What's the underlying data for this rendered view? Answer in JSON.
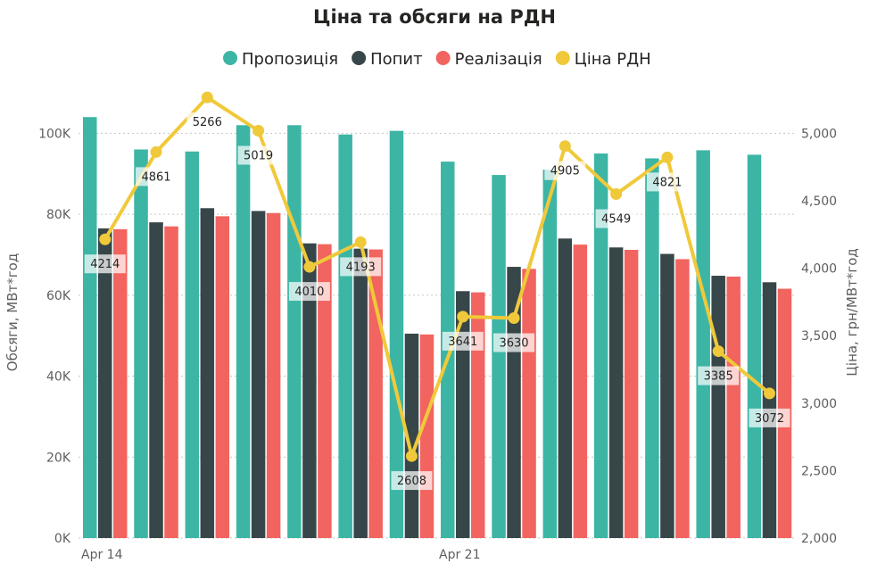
{
  "chart_data": {
    "type": "bar",
    "title": "Ціна та обсяги на РДН",
    "ylabel": "Обсяги, МВт*год",
    "y2label": "Ціна, грн/МВт*год",
    "ylim": [
      0,
      110000
    ],
    "y2lim": [
      2000,
      5300
    ],
    "y_ticks": [
      {
        "value": 0,
        "label": "0K"
      },
      {
        "value": 20000,
        "label": "20K"
      },
      {
        "value": 40000,
        "label": "40K"
      },
      {
        "value": 60000,
        "label": "60K"
      },
      {
        "value": 80000,
        "label": "80K"
      },
      {
        "value": 100000,
        "label": "100K"
      }
    ],
    "y2_ticks": [
      {
        "value": 2000,
        "label": "2,000"
      },
      {
        "value": 2500,
        "label": "2,500"
      },
      {
        "value": 3000,
        "label": "3,000"
      },
      {
        "value": 3500,
        "label": "3,500"
      },
      {
        "value": 4000,
        "label": "4,000"
      },
      {
        "value": 4500,
        "label": "4,500"
      },
      {
        "value": 5000,
        "label": "5,000"
      }
    ],
    "x_tick_labels": [
      {
        "index": 0,
        "label": "Apr 14"
      },
      {
        "index": 7,
        "label": "Apr 21"
      }
    ],
    "legend_position": "top-center",
    "grid": true,
    "series": [
      {
        "name": "Пропозиція",
        "color": "#3cb5a5",
        "kind": "bar",
        "values": [
          104000,
          96000,
          95500,
          102000,
          102000,
          99700,
          100600,
          93000,
          89700,
          91000,
          95000,
          93800,
          95800,
          94700
        ]
      },
      {
        "name": "Попит",
        "color": "#374649",
        "kind": "bar",
        "values": [
          76500,
          78000,
          81500,
          80800,
          72800,
          71500,
          50500,
          61000,
          67000,
          74000,
          71800,
          70200,
          64800,
          63200
        ]
      },
      {
        "name": "Реалізація",
        "color": "#f2645f",
        "kind": "bar",
        "values": [
          76300,
          77000,
          79500,
          80300,
          72600,
          71300,
          50300,
          60700,
          66500,
          72500,
          71200,
          68900,
          64600,
          61600
        ]
      },
      {
        "name": "Ціна РДН",
        "color": "#f0c93a",
        "kind": "line",
        "axis": "right",
        "values": [
          4214,
          4861,
          5266,
          5019,
          4010,
          4193,
          2608,
          3641,
          3630,
          4905,
          4549,
          4821,
          3385,
          3072
        ]
      }
    ]
  }
}
